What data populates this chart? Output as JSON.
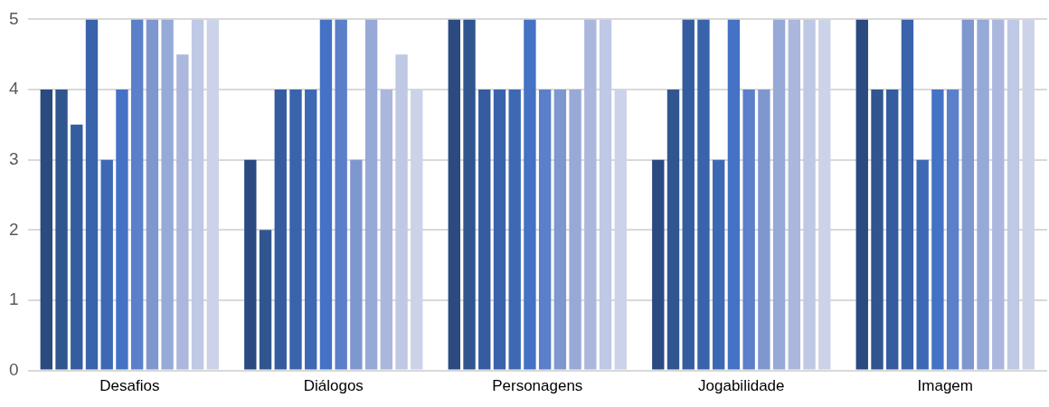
{
  "chart_data": {
    "type": "bar",
    "categories": [
      "Desafios",
      "Diálogos",
      "Personagens",
      "Jogabilidade",
      "Imagem"
    ],
    "series": [
      {
        "color": "#2a4a80",
        "values": [
          4,
          3,
          5,
          3,
          5
        ]
      },
      {
        "color": "#30558f",
        "values": [
          4,
          2,
          5,
          4,
          4
        ]
      },
      {
        "color": "#345c9f",
        "values": [
          3.5,
          4,
          4,
          5,
          4
        ]
      },
      {
        "color": "#3963ab",
        "values": [
          5,
          4,
          4,
          5,
          5
        ]
      },
      {
        "color": "#3d69b4",
        "values": [
          3,
          4,
          4,
          3,
          3
        ]
      },
      {
        "color": "#4472c4",
        "values": [
          4,
          5,
          5,
          5,
          4
        ]
      },
      {
        "color": "#5b7fc8",
        "values": [
          5,
          5,
          4,
          4,
          4
        ]
      },
      {
        "color": "#7f97cf",
        "values": [
          5,
          3,
          4,
          4,
          5
        ]
      },
      {
        "color": "#97a9d6",
        "values": [
          5,
          5,
          4,
          5,
          5
        ]
      },
      {
        "color": "#abb7dd",
        "values": [
          4.5,
          4,
          5,
          5,
          5
        ]
      },
      {
        "color": "#bfc8e4",
        "values": [
          5,
          4.5,
          5,
          5,
          5
        ]
      },
      {
        "color": "#ccd3e9",
        "values": [
          5,
          4,
          4,
          5,
          5
        ]
      }
    ],
    "ylim": [
      0,
      5
    ],
    "yticks": [
      0,
      1,
      2,
      3,
      4,
      5
    ],
    "grid": "y",
    "legend": false
  }
}
